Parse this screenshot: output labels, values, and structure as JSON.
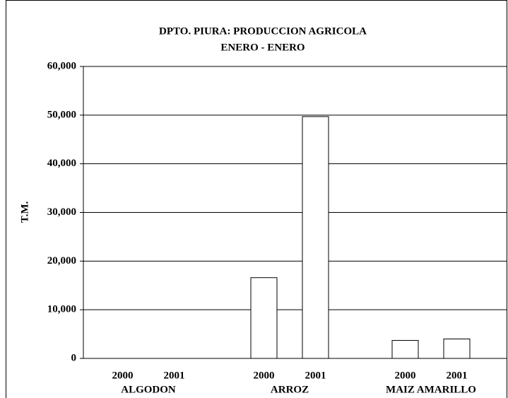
{
  "chart_data": {
    "type": "bar",
    "title": "DPTO. PIURA: PRODUCCION AGRICOLA",
    "subtitle": "ENERO - ENERO",
    "y_label": "T.M.",
    "categories": [
      "ALGODON",
      "ARROZ",
      "MAIZ AMARILLO"
    ],
    "series": [
      {
        "name": "2000",
        "color": "#ffffff",
        "values": [
          0,
          16600,
          3700
        ]
      },
      {
        "name": "2001",
        "color": "#ffffff",
        "values": [
          0,
          49700,
          4000
        ]
      }
    ],
    "ylim": [
      0,
      60000
    ],
    "yticks": [
      {
        "value": 0,
        "label": "0"
      },
      {
        "value": 10000,
        "label": "10,000"
      },
      {
        "value": 20000,
        "label": "20,000"
      },
      {
        "value": 30000,
        "label": "30,000"
      },
      {
        "value": 40000,
        "label": "40,000"
      },
      {
        "value": 50000,
        "label": "50,000"
      },
      {
        "value": 60000,
        "label": "60,000"
      }
    ],
    "grid": true
  }
}
